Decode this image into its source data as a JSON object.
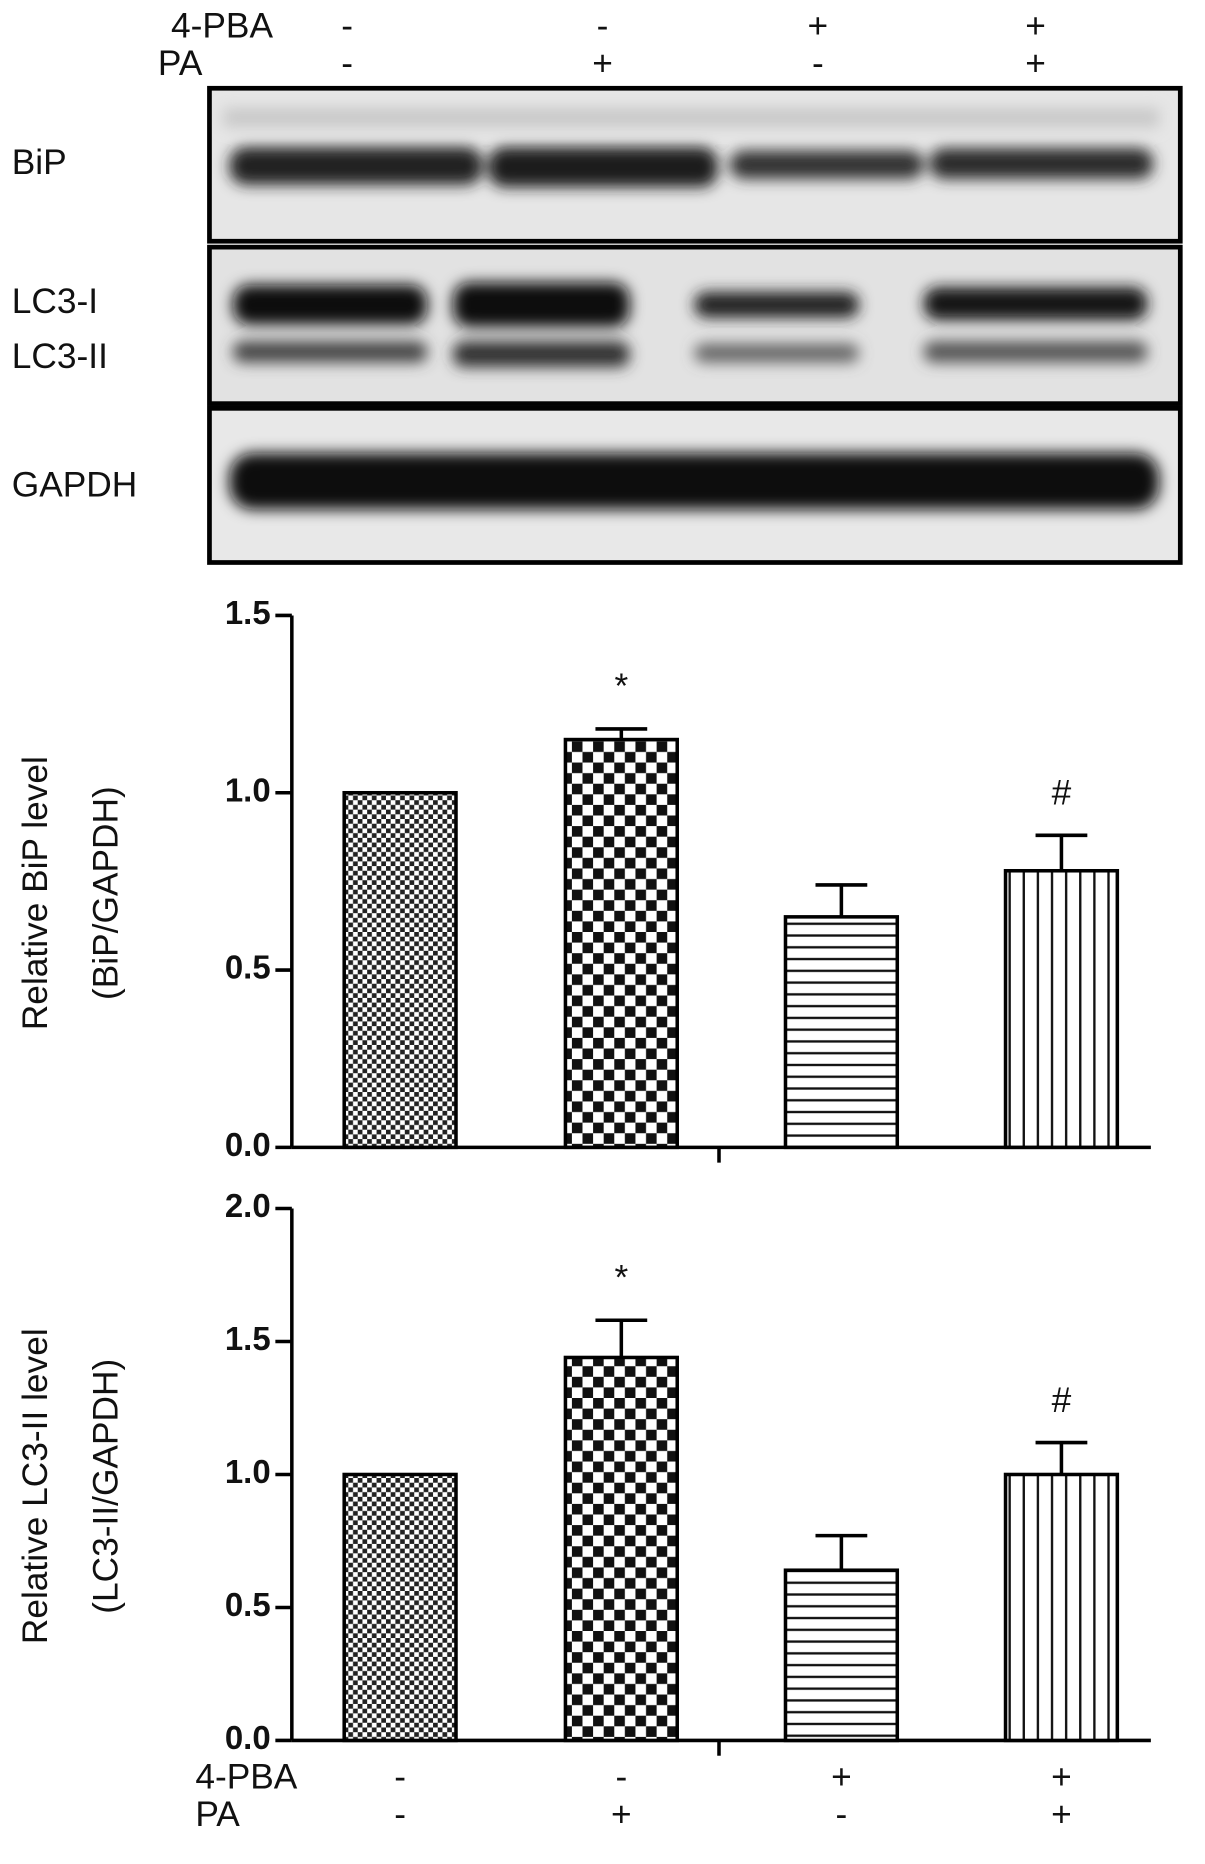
{
  "blot": {
    "treatments": [
      {
        "name": "4-PBA",
        "signs": [
          "-",
          "-",
          "+",
          "+"
        ]
      },
      {
        "name": "PA",
        "signs": [
          "-",
          "+",
          "-",
          "+"
        ]
      }
    ],
    "bands": [
      "BiP",
      "LC3-I",
      "LC3-II",
      "GAPDH"
    ]
  },
  "chart_data": [
    {
      "type": "bar",
      "ylabel": [
        "Relative BiP level",
        "(BiP/GAPDH)"
      ],
      "values": [
        1.0,
        1.15,
        0.65,
        0.78
      ],
      "errors": [
        null,
        0.03,
        0.09,
        0.1
      ],
      "annotations": [
        null,
        "*",
        null,
        "#"
      ],
      "ylim": [
        0,
        1.5
      ],
      "yticks": [
        {
          "value": 0,
          "label": "0.0"
        },
        0.5,
        {
          "value": 1,
          "label": "1.0"
        },
        1.5
      ]
    },
    {
      "type": "bar",
      "ylabel": [
        "Relative LC3-II level",
        "(LC3-II/GAPDH)"
      ],
      "values": [
        1.0,
        1.44,
        0.64,
        1.0
      ],
      "errors": [
        null,
        0.14,
        0.13,
        0.12
      ],
      "annotations": [
        null,
        "*",
        null,
        "#"
      ],
      "ylim": [
        0,
        2
      ],
      "yticks": [
        {
          "value": 0,
          "label": "0.0"
        },
        0.5,
        {
          "value": 1,
          "label": "1.0"
        },
        1.5,
        {
          "value": 2,
          "label": "2.0"
        }
      ],
      "treatments": [
        {
          "name": "4-PBA",
          "signs": [
            "-",
            "-",
            "+",
            "+"
          ]
        },
        {
          "name": "PA",
          "signs": [
            "-",
            "+",
            "-",
            "+"
          ]
        }
      ]
    }
  ]
}
